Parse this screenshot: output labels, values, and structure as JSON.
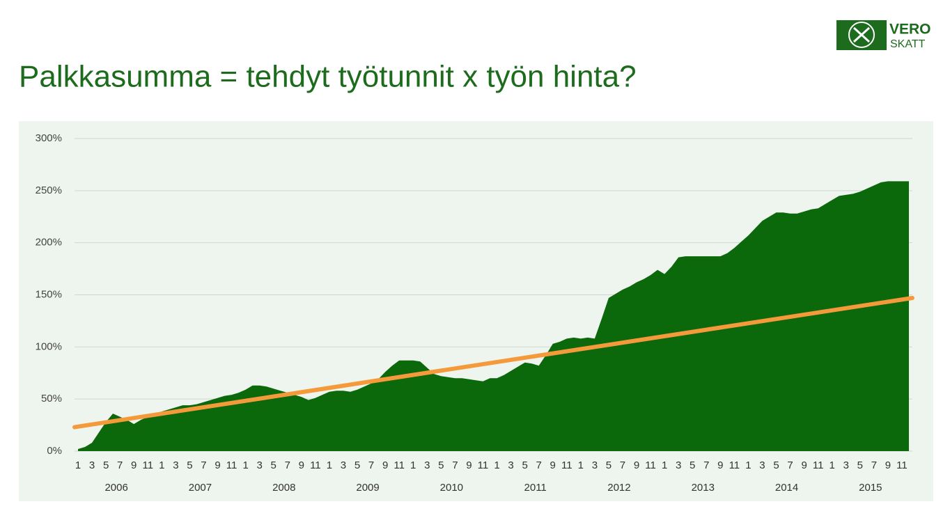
{
  "logo": {
    "line1": "VERO",
    "line2": "SKATT"
  },
  "chart_data": {
    "type": "area",
    "title": "Palkkasumma = tehdyt työtunnit x työn hinta?",
    "categories": [
      "1",
      null,
      "3",
      null,
      "5",
      null,
      "7",
      null,
      "9",
      null,
      "11",
      null,
      "1",
      null,
      "3",
      null,
      "5",
      null,
      "7",
      null,
      "9",
      null,
      "11",
      null,
      "1",
      null,
      "3",
      null,
      "5",
      null,
      "7",
      null,
      "9",
      null,
      "11",
      null,
      "1",
      null,
      "3",
      null,
      "5",
      null,
      "7",
      null,
      "9",
      null,
      "11",
      null,
      "1",
      null,
      "3",
      null,
      "5",
      null,
      "7",
      null,
      "9",
      null,
      "11",
      null,
      "1",
      null,
      "3",
      null,
      "5",
      null,
      "7",
      null,
      "9",
      null,
      "11",
      null,
      "1",
      null,
      "3",
      null,
      "5",
      null,
      "7",
      null,
      "9",
      null,
      "11",
      null,
      "1",
      null,
      "3",
      null,
      "5",
      null,
      "7",
      null,
      "9",
      null,
      "11",
      null,
      "1",
      null,
      "3",
      null,
      "5",
      null,
      "7",
      null,
      "9",
      null,
      "11",
      null,
      "1",
      null,
      "3",
      null,
      "5",
      null,
      "7",
      null,
      "9",
      null,
      "11",
      null
    ],
    "years": [
      "2006",
      "2007",
      "2008",
      "2009",
      "2010",
      "2011",
      "2012",
      "2013",
      "2014",
      "2015"
    ],
    "values": [
      2,
      4,
      8,
      18,
      28,
      36,
      33,
      30,
      26,
      30,
      33,
      36,
      38,
      40,
      42,
      44,
      44,
      45,
      47,
      49,
      51,
      53,
      54,
      56,
      59,
      63,
      63,
      62,
      60,
      58,
      56,
      54,
      52,
      49,
      51,
      54,
      57,
      58,
      58,
      57,
      59,
      62,
      65,
      69,
      76,
      82,
      87,
      87,
      87,
      86,
      80,
      74,
      72,
      71,
      70,
      70,
      69,
      68,
      67,
      70,
      70,
      73,
      77,
      81,
      85,
      84,
      82,
      92,
      103,
      105,
      108,
      109,
      108,
      109,
      108,
      127,
      147,
      151,
      155,
      158,
      162,
      165,
      169,
      174,
      170,
      177,
      186,
      187,
      187,
      187,
      187,
      187,
      187,
      190,
      195,
      201,
      207,
      214,
      221,
      225,
      229,
      229,
      228,
      228,
      230,
      232,
      233,
      237,
      241,
      245,
      246,
      247,
      249,
      252,
      255,
      258,
      259,
      259,
      259,
      259
    ],
    "color": "#0b680b",
    "trendline": {
      "start": 23,
      "end": 147,
      "color": "#f59a3b"
    },
    "ylim": [
      0,
      300
    ],
    "yticks": [
      {
        "value": 0,
        "label": "0%"
      },
      {
        "value": 50,
        "label": "50%"
      },
      {
        "value": 100,
        "label": "100%"
      },
      {
        "value": 150,
        "label": "150%"
      },
      {
        "value": 200,
        "label": "200%"
      },
      {
        "value": 250,
        "label": "250%"
      },
      {
        "value": 300,
        "label": "300%"
      }
    ],
    "grid": true
  }
}
